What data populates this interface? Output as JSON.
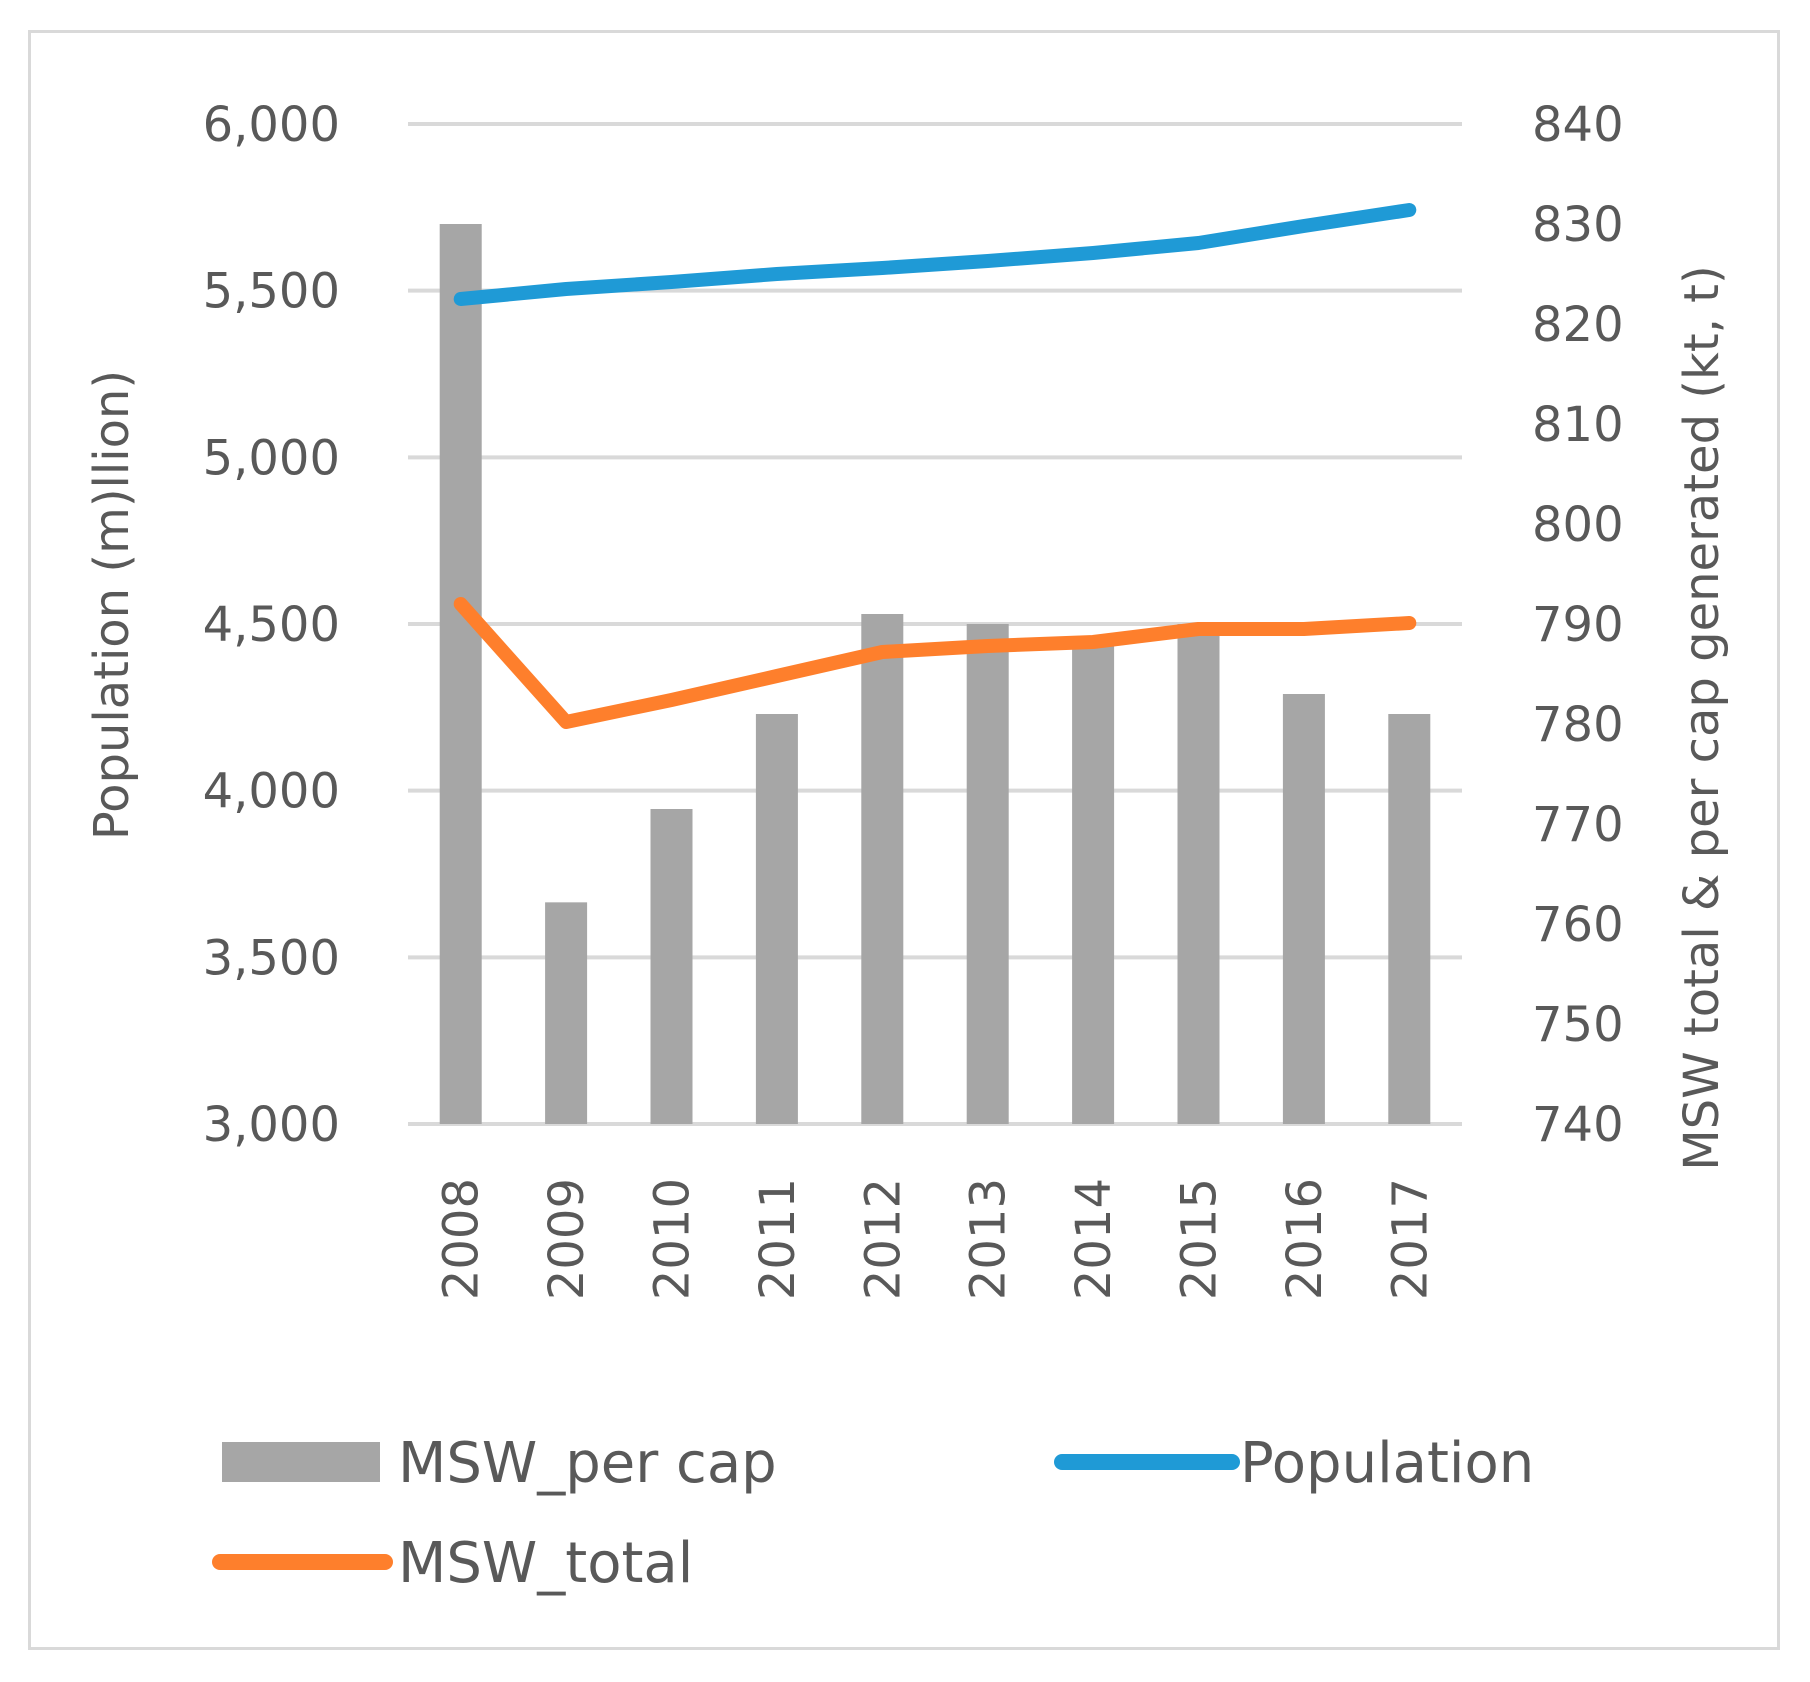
{
  "chart_data": {
    "type": "bar",
    "title": "",
    "categories": [
      "2008",
      "2009",
      "2010",
      "2011",
      "2012",
      "2013",
      "2014",
      "2015",
      "2016",
      "2017"
    ],
    "series": [
      {
        "name": "MSW_per cap",
        "type": "bar",
        "axis": "left",
        "color": "#a6a6a6",
        "values": [
          5700,
          3665,
          3945,
          4230,
          4530,
          4500,
          4455,
          4500,
          4290,
          4230
        ]
      },
      {
        "name": "Population",
        "type": "line",
        "axis": "right",
        "color": "#1f9ad6",
        "values": [
          822.5,
          823.5,
          824.2,
          825.0,
          825.6,
          826.3,
          827.1,
          828.1,
          829.8,
          831.4
        ]
      },
      {
        "name": "MSW_total",
        "type": "line",
        "axis": "right",
        "color": "#fe7f2c",
        "values": [
          792.0,
          780.2,
          782.4,
          784.8,
          787.2,
          787.8,
          788.2,
          789.5,
          789.5,
          790.1
        ]
      }
    ],
    "ylabel_left": "Population (m)llion)",
    "ylabel_right": "MSW total & per cap generated (kt, t)",
    "ylim_left": [
      3000,
      6000
    ],
    "yticks_left": [
      "3,000",
      "3,500",
      "4,000",
      "4,500",
      "5,000",
      "5,500",
      "6,000"
    ],
    "ylim_right": [
      740,
      840
    ],
    "yticks_right": [
      "740",
      "750",
      "760",
      "770",
      "780",
      "790",
      "800",
      "810",
      "820",
      "830",
      "840"
    ],
    "grid": true,
    "legend_position": "bottom"
  }
}
